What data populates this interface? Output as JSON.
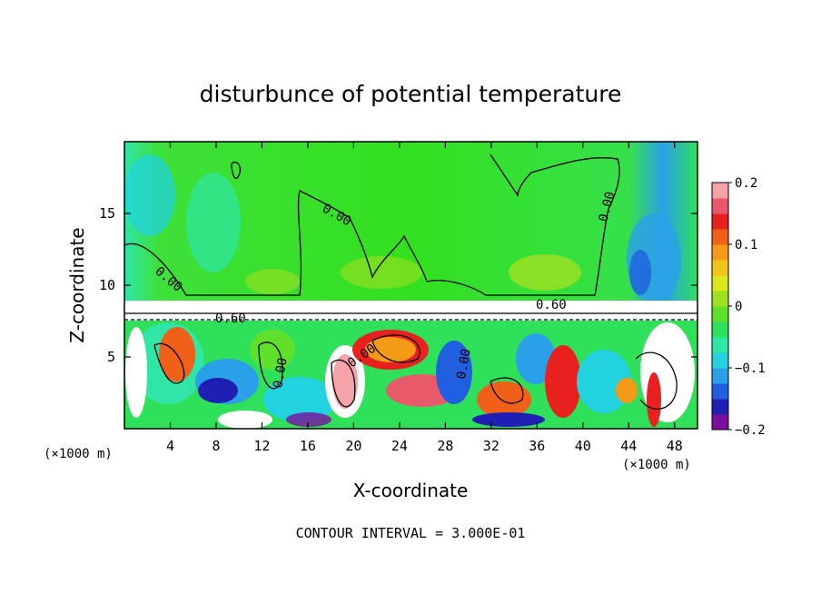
{
  "chart_data": {
    "type": "heatmap",
    "title": "disturbunce of potential temperature",
    "xlabel": "X-coordinate",
    "ylabel": "Z-coordinate",
    "x_unit_left": "(×1000 m)",
    "x_unit_right": "(×1000 m)",
    "xlim": [
      0,
      50
    ],
    "ylim": [
      0,
      20
    ],
    "x_ticks": [
      4,
      8,
      12,
      16,
      20,
      24,
      28,
      32,
      36,
      40,
      44,
      48
    ],
    "y_ticks": [
      5,
      10,
      15
    ],
    "colorbar": {
      "min": -0.2,
      "max": 0.2,
      "ticks": [
        {
          "value": 0.2,
          "label": "0.2"
        },
        {
          "value": 0.1,
          "label": "0.1"
        },
        {
          "value": 0,
          "label": "0"
        },
        {
          "value": -0.1,
          "label": "−0.1"
        },
        {
          "value": -0.2,
          "label": "−0.2"
        }
      ],
      "colors": [
        "#7b0f9e",
        "#1f1fb4",
        "#1f5fe0",
        "#2aa0e8",
        "#22d3df",
        "#2fe6a6",
        "#2fe05a",
        "#5fe02a",
        "#9fe020",
        "#d8e81a",
        "#f0c418",
        "#f39a18",
        "#f06018",
        "#e82020",
        "#e85a6a",
        "#f4a3a8"
      ]
    },
    "contour_labels": [
      "0.00",
      "0.00",
      "0.00",
      "0.00",
      "0.00",
      "0.60",
      "0.60",
      "0.00"
    ],
    "footer": "CONTOUR INTERVAL = 3.000E-01"
  },
  "colors": {
    "upper_field": "#33e01f",
    "axis": "#000000"
  }
}
